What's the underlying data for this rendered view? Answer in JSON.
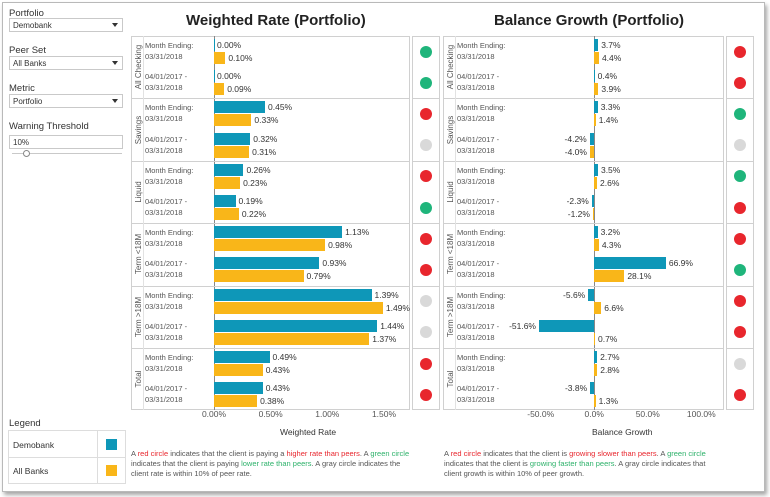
{
  "filters": {
    "portfolio": {
      "label": "Portfolio",
      "value": "Demobank"
    },
    "peer_set": {
      "label": "Peer Set",
      "value": "All Banks"
    },
    "metric": {
      "label": "Metric",
      "value": "Portfolio"
    },
    "warning_threshold": {
      "label": "Warning Threshold",
      "value": "10%",
      "slider_fraction": 0.13
    }
  },
  "legend": {
    "title": "Legend",
    "items": [
      {
        "label": "Demobank",
        "color": "#0e97b8"
      },
      {
        "label": "All Banks",
        "color": "#f9b619"
      }
    ]
  },
  "colors": {
    "demobank": "#0e97b8",
    "all_banks": "#f9b619",
    "status_red": "#e8262d",
    "status_green": "#1fb57b",
    "status_gray": "#d9d9d9"
  },
  "status_colors": {
    "red": "#e8262d",
    "green": "#1fb57b",
    "gray": "#d9d9d9"
  },
  "categories": [
    "All Checking",
    "Savings",
    "Liquid",
    "Term <18M",
    "Term >18M",
    "Total"
  ],
  "period_labels": [
    "Month Ending: 03/31/2018",
    "04/01/2017 - 03/31/2018"
  ],
  "chart_data": [
    {
      "type": "bar",
      "title": "Weighted Rate (Portfolio)",
      "xlabel": "Weighted Rate",
      "xlim": [
        0,
        1.5
      ],
      "x_ticks": [
        "0.00%",
        "0.50%",
        "1.00%",
        "1.50%"
      ],
      "rows": [
        {
          "category": "All Checking",
          "period": "Month Ending: 03/31/2018",
          "demobank": 0.0,
          "all_banks": 0.1,
          "demobank_label": "0.00%",
          "all_banks_label": "0.10%",
          "status": "green"
        },
        {
          "category": "All Checking",
          "period": "04/01/2017 - 03/31/2018",
          "demobank": 0.0,
          "all_banks": 0.09,
          "demobank_label": "0.00%",
          "all_banks_label": "0.09%",
          "status": "green"
        },
        {
          "category": "Savings",
          "period": "Month Ending: 03/31/2018",
          "demobank": 0.45,
          "all_banks": 0.33,
          "demobank_label": "0.45%",
          "all_banks_label": "0.33%",
          "status": "red"
        },
        {
          "category": "Savings",
          "period": "04/01/2017 - 03/31/2018",
          "demobank": 0.32,
          "all_banks": 0.31,
          "demobank_label": "0.32%",
          "all_banks_label": "0.31%",
          "status": "gray"
        },
        {
          "category": "Liquid",
          "period": "Month Ending: 03/31/2018",
          "demobank": 0.26,
          "all_banks": 0.23,
          "demobank_label": "0.26%",
          "all_banks_label": "0.23%",
          "status": "red"
        },
        {
          "category": "Liquid",
          "period": "04/01/2017 - 03/31/2018",
          "demobank": 0.19,
          "all_banks": 0.22,
          "demobank_label": "0.19%",
          "all_banks_label": "0.22%",
          "status": "green"
        },
        {
          "category": "Term <18M",
          "period": "Month Ending: 03/31/2018",
          "demobank": 1.13,
          "all_banks": 0.98,
          "demobank_label": "1.13%",
          "all_banks_label": "0.98%",
          "status": "red"
        },
        {
          "category": "Term <18M",
          "period": "04/01/2017 - 03/31/2018",
          "demobank": 0.93,
          "all_banks": 0.79,
          "demobank_label": "0.93%",
          "all_banks_label": "0.79%",
          "status": "red"
        },
        {
          "category": "Term >18M",
          "period": "Month Ending: 03/31/2018",
          "demobank": 1.39,
          "all_banks": 1.49,
          "demobank_label": "1.39%",
          "all_banks_label": "1.49%",
          "status": "gray"
        },
        {
          "category": "Term >18M",
          "period": "04/01/2017 - 03/31/2018",
          "demobank": 1.44,
          "all_banks": 1.37,
          "demobank_label": "1.44%",
          "all_banks_label": "1.37%",
          "status": "gray"
        },
        {
          "category": "Total",
          "period": "Month Ending: 03/31/2018",
          "demobank": 0.49,
          "all_banks": 0.43,
          "demobank_label": "0.49%",
          "all_banks_label": "0.43%",
          "status": "red"
        },
        {
          "category": "Total",
          "period": "04/01/2017 - 03/31/2018",
          "demobank": 0.43,
          "all_banks": 0.38,
          "demobank_label": "0.43%",
          "all_banks_label": "0.38%",
          "status": "red"
        }
      ],
      "note": [
        {
          "text": "A ",
          "color": ""
        },
        {
          "text": "red circle",
          "color": "red"
        },
        {
          "text": " indicates that the client is paying a ",
          "color": ""
        },
        {
          "text": "higher rate than peers",
          "color": "red"
        },
        {
          "text": ". A ",
          "color": ""
        },
        {
          "text": "green circle",
          "color": "green"
        },
        {
          "text": " indicates that the client is paying ",
          "color": ""
        },
        {
          "text": "lower rate than peers",
          "color": "green"
        },
        {
          "text": ". A gray circle indicates the client rate is within 10% of peer rate.",
          "color": ""
        }
      ]
    },
    {
      "type": "bar",
      "title": "Balance Growth (Portfolio)",
      "xlabel": "Balance Growth",
      "xlim": [
        -60,
        110
      ],
      "x_ticks": [
        "-50.0%",
        "0.0%",
        "50.0%",
        "100.0%"
      ],
      "rows": [
        {
          "category": "All Checking",
          "period": "Month Ending: 03/31/2018",
          "demobank": 3.7,
          "all_banks": 4.4,
          "demobank_label": "3.7%",
          "all_banks_label": "4.4%",
          "status": "red"
        },
        {
          "category": "All Checking",
          "period": "04/01/2017 - 03/31/2018",
          "demobank": 0.4,
          "all_banks": 3.9,
          "demobank_label": "0.4%",
          "all_banks_label": "3.9%",
          "status": "red"
        },
        {
          "category": "Savings",
          "period": "Month Ending: 03/31/2018",
          "demobank": 3.3,
          "all_banks": 1.4,
          "demobank_label": "3.3%",
          "all_banks_label": "1.4%",
          "status": "green"
        },
        {
          "category": "Savings",
          "period": "04/01/2017 - 03/31/2018",
          "demobank": -4.2,
          "all_banks": -4.0,
          "demobank_label": "-4.2%",
          "all_banks_label": "-4.0%",
          "status": "gray"
        },
        {
          "category": "Liquid",
          "period": "Month Ending: 03/31/2018",
          "demobank": 3.5,
          "all_banks": 2.6,
          "demobank_label": "3.5%",
          "all_banks_label": "2.6%",
          "status": "green"
        },
        {
          "category": "Liquid",
          "period": "04/01/2017 - 03/31/2018",
          "demobank": -2.3,
          "all_banks": -1.2,
          "demobank_label": "-2.3%",
          "all_banks_label": "-1.2%",
          "status": "red"
        },
        {
          "category": "Term <18M",
          "period": "Month Ending: 03/31/2018",
          "demobank": 3.2,
          "all_banks": 4.3,
          "demobank_label": "3.2%",
          "all_banks_label": "4.3%",
          "status": "red"
        },
        {
          "category": "Term <18M",
          "period": "04/01/2017 - 03/31/2018",
          "demobank": 66.9,
          "all_banks": 28.1,
          "demobank_label": "66.9%",
          "all_banks_label": "28.1%",
          "status": "green"
        },
        {
          "category": "Term >18M",
          "period": "Month Ending: 03/31/2018",
          "demobank": -5.6,
          "all_banks": 6.6,
          "demobank_label": "-5.6%",
          "all_banks_label": "6.6%",
          "status": "red"
        },
        {
          "category": "Term >18M",
          "period": "04/01/2017 - 03/31/2018",
          "demobank": -51.6,
          "all_banks": 0.7,
          "demobank_label": "-51.6%",
          "all_banks_label": "0.7%",
          "status": "red"
        },
        {
          "category": "Total",
          "period": "Month Ending: 03/31/2018",
          "demobank": 2.7,
          "all_banks": 2.8,
          "demobank_label": "2.7%",
          "all_banks_label": "2.8%",
          "status": "gray"
        },
        {
          "category": "Total",
          "period": "04/01/2017 - 03/31/2018",
          "demobank": -3.8,
          "all_banks": 1.3,
          "demobank_label": "-3.8%",
          "all_banks_label": "1.3%",
          "status": "red"
        }
      ],
      "note": [
        {
          "text": "A ",
          "color": ""
        },
        {
          "text": "red circle",
          "color": "red"
        },
        {
          "text": " indicates that the client is ",
          "color": ""
        },
        {
          "text": "growing slower than peers",
          "color": "red"
        },
        {
          "text": ". A ",
          "color": ""
        },
        {
          "text": "green circle",
          "color": "green"
        },
        {
          "text": " indicates that the client is ",
          "color": ""
        },
        {
          "text": "growing faster than peers",
          "color": "green"
        },
        {
          "text": ". A gray circle indicates that client growth is within 10% of peer growth.",
          "color": ""
        }
      ]
    }
  ]
}
